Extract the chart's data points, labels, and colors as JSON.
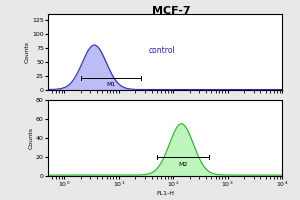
{
  "title": "MCF-7",
  "title_fontsize": 8,
  "title_fontweight": "bold",
  "top_plot": {
    "color": "#2222bb",
    "fill_color": "#8888ee",
    "peak_log_x": 0.55,
    "peak_height": 80,
    "sigma": 0.22,
    "base_height": 1,
    "gate_label": "M1",
    "annotation": "control",
    "annotation_fontsize": 5.5,
    "ylim": [
      0,
      135
    ],
    "yticks": [
      0,
      25,
      50,
      75,
      100,
      125
    ],
    "ylabel": "Counts",
    "gate_log_x1": 0.3,
    "gate_log_x2": 1.4,
    "gate_y": 22
  },
  "bottom_plot": {
    "color": "#22aa22",
    "fill_color": "#88ee88",
    "peak_log_x": 2.15,
    "peak_height": 55,
    "sigma": 0.22,
    "base_height": 1,
    "gate_label": "M2",
    "ylim": [
      0,
      80
    ],
    "yticks": [
      0,
      20,
      40,
      60,
      80
    ],
    "ylabel": "Counts",
    "gate_log_x1": 1.7,
    "gate_log_x2": 2.65,
    "gate_y": 20
  },
  "xlabel": "FL1-H",
  "xlog_min": -0.3,
  "xlog_max": 4.0,
  "background_color": "#e8e8e8",
  "plot_bg": "#ffffff",
  "tick_fontsize": 4.5,
  "ylabel_fontsize": 4.5,
  "xlabel_fontsize": 4.5
}
